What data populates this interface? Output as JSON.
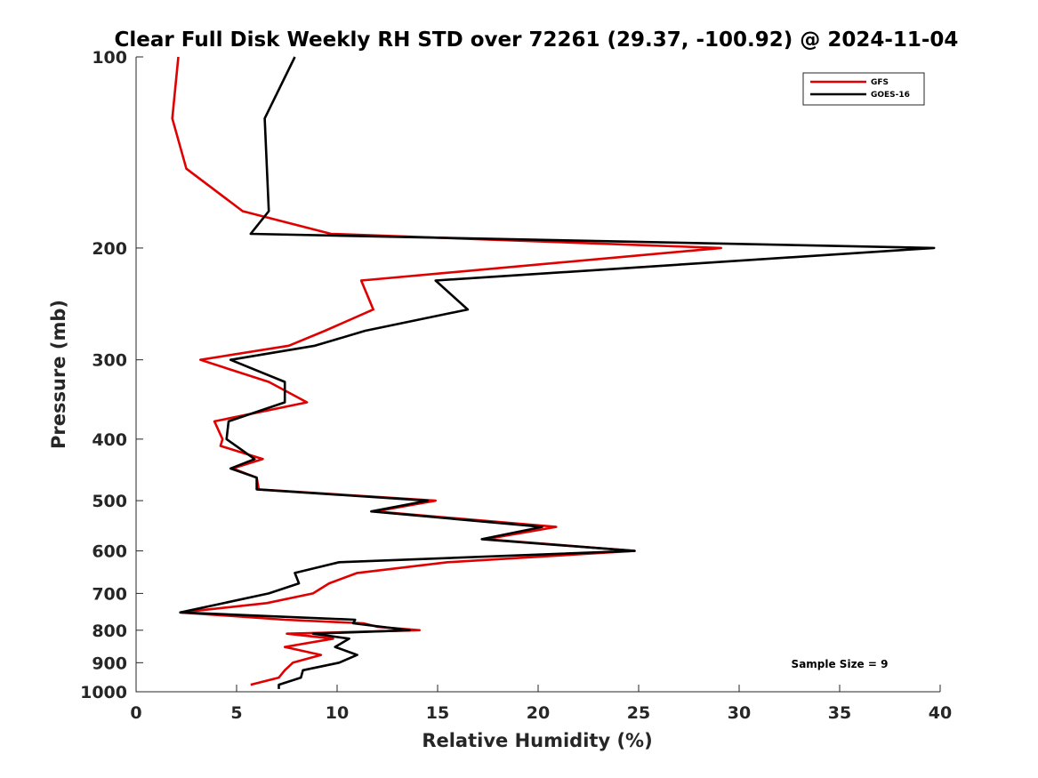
{
  "chart_data": {
    "type": "line",
    "title": "Clear Full Disk Weekly RH STD over 72261 (29.37, -100.92) @ 2024-11-04",
    "xlabel": "Relative Humidity (%)",
    "ylabel": "Pressure (mb)",
    "xlim": [
      0,
      40
    ],
    "ylim": [
      100,
      1000
    ],
    "yscale": "log",
    "y_inverted": true,
    "x_ticks": [
      0,
      5,
      10,
      15,
      20,
      25,
      30,
      35,
      40
    ],
    "y_ticks": [
      100,
      200,
      300,
      400,
      500,
      600,
      700,
      800,
      900,
      1000
    ],
    "grid": false,
    "legend": {
      "placement": "top-right"
    },
    "annotation": "Sample Size = 9",
    "series": [
      {
        "name": "GFS",
        "color": "#e00000",
        "points": [
          {
            "x": 2.1,
            "y": 100
          },
          {
            "x": 1.8,
            "y": 125
          },
          {
            "x": 2.5,
            "y": 150
          },
          {
            "x": 5.3,
            "y": 175
          },
          {
            "x": 9.7,
            "y": 190
          },
          {
            "x": 29.1,
            "y": 200
          },
          {
            "x": 11.2,
            "y": 225
          },
          {
            "x": 11.8,
            "y": 250
          },
          {
            "x": 9.4,
            "y": 270
          },
          {
            "x": 7.6,
            "y": 285
          },
          {
            "x": 3.2,
            "y": 300
          },
          {
            "x": 6.6,
            "y": 325
          },
          {
            "x": 8.5,
            "y": 350
          },
          {
            "x": 3.9,
            "y": 375
          },
          {
            "x": 4.3,
            "y": 400
          },
          {
            "x": 4.2,
            "y": 410
          },
          {
            "x": 6.3,
            "y": 430
          },
          {
            "x": 4.8,
            "y": 445
          },
          {
            "x": 6.0,
            "y": 460
          },
          {
            "x": 6.1,
            "y": 480
          },
          {
            "x": 14.9,
            "y": 500
          },
          {
            "x": 11.9,
            "y": 520
          },
          {
            "x": 20.9,
            "y": 550
          },
          {
            "x": 17.4,
            "y": 575
          },
          {
            "x": 24.8,
            "y": 600
          },
          {
            "x": 15.5,
            "y": 625
          },
          {
            "x": 11.0,
            "y": 650
          },
          {
            "x": 9.6,
            "y": 675
          },
          {
            "x": 8.8,
            "y": 700
          },
          {
            "x": 6.5,
            "y": 725
          },
          {
            "x": 2.2,
            "y": 750
          },
          {
            "x": 7.4,
            "y": 770
          },
          {
            "x": 11.3,
            "y": 780
          },
          {
            "x": 12.0,
            "y": 790
          },
          {
            "x": 14.1,
            "y": 800
          },
          {
            "x": 7.5,
            "y": 810
          },
          {
            "x": 9.8,
            "y": 825
          },
          {
            "x": 7.4,
            "y": 850
          },
          {
            "x": 9.2,
            "y": 875
          },
          {
            "x": 7.8,
            "y": 900
          },
          {
            "x": 7.4,
            "y": 925
          },
          {
            "x": 7.1,
            "y": 950
          },
          {
            "x": 5.7,
            "y": 975
          }
        ]
      },
      {
        "name": "GOES-16",
        "color": "#000000",
        "points": [
          {
            "x": 7.9,
            "y": 100
          },
          {
            "x": 6.4,
            "y": 125
          },
          {
            "x": 6.6,
            "y": 175
          },
          {
            "x": 5.7,
            "y": 190
          },
          {
            "x": 39.7,
            "y": 200
          },
          {
            "x": 14.9,
            "y": 225
          },
          {
            "x": 16.5,
            "y": 250
          },
          {
            "x": 11.4,
            "y": 270
          },
          {
            "x": 8.9,
            "y": 285
          },
          {
            "x": 4.7,
            "y": 300
          },
          {
            "x": 7.4,
            "y": 325
          },
          {
            "x": 7.4,
            "y": 350
          },
          {
            "x": 4.6,
            "y": 375
          },
          {
            "x": 4.5,
            "y": 400
          },
          {
            "x": 5.9,
            "y": 430
          },
          {
            "x": 4.7,
            "y": 445
          },
          {
            "x": 6.0,
            "y": 460
          },
          {
            "x": 6.0,
            "y": 480
          },
          {
            "x": 14.5,
            "y": 500
          },
          {
            "x": 11.7,
            "y": 520
          },
          {
            "x": 20.2,
            "y": 550
          },
          {
            "x": 17.2,
            "y": 575
          },
          {
            "x": 24.8,
            "y": 600
          },
          {
            "x": 10.1,
            "y": 625
          },
          {
            "x": 7.9,
            "y": 650
          },
          {
            "x": 8.1,
            "y": 675
          },
          {
            "x": 6.6,
            "y": 700
          },
          {
            "x": 2.2,
            "y": 750
          },
          {
            "x": 10.9,
            "y": 770
          },
          {
            "x": 10.8,
            "y": 780
          },
          {
            "x": 13.6,
            "y": 800
          },
          {
            "x": 8.8,
            "y": 810
          },
          {
            "x": 10.6,
            "y": 825
          },
          {
            "x": 9.9,
            "y": 850
          },
          {
            "x": 11.0,
            "y": 875
          },
          {
            "x": 10.1,
            "y": 900
          },
          {
            "x": 8.3,
            "y": 925
          },
          {
            "x": 8.2,
            "y": 950
          },
          {
            "x": 7.1,
            "y": 975
          },
          {
            "x": 7.1,
            "y": 990
          }
        ]
      }
    ]
  }
}
